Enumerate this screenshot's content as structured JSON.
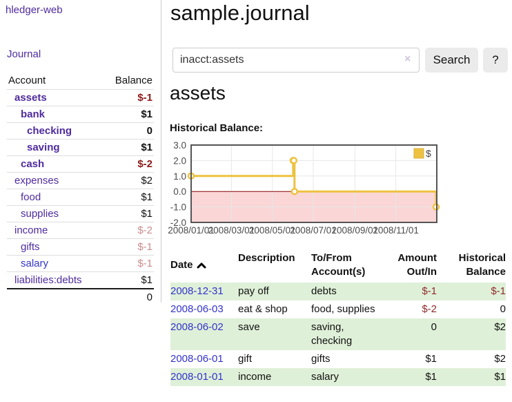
{
  "app": {
    "brand": "hledger-web"
  },
  "nav": {
    "journal": "Journal"
  },
  "sidebar": {
    "header": {
      "account": "Account",
      "balance": "Balance"
    },
    "accounts": [
      {
        "name": "assets",
        "balance": "$-1",
        "indent": 1,
        "bold": true,
        "bal_style": "negstrong"
      },
      {
        "name": "bank",
        "balance": "$1",
        "indent": 2,
        "bold": true,
        "bal_style": "normal"
      },
      {
        "name": "checking",
        "balance": "0",
        "indent": 3,
        "bold": true,
        "bal_style": "normal"
      },
      {
        "name": "saving",
        "balance": "$1",
        "indent": 3,
        "bold": true,
        "bal_style": "normal"
      },
      {
        "name": "cash",
        "balance": "$-2",
        "indent": 2,
        "bold": true,
        "bal_style": "negstrong"
      },
      {
        "name": "expenses",
        "balance": "$2",
        "indent": 1,
        "bold": false,
        "bal_style": "normal"
      },
      {
        "name": "food",
        "balance": "$1",
        "indent": 2,
        "bold": false,
        "bal_style": "normal"
      },
      {
        "name": "supplies",
        "balance": "$1",
        "indent": 2,
        "bold": false,
        "bal_style": "normal"
      },
      {
        "name": "income",
        "balance": "$-2",
        "indent": 1,
        "bold": false,
        "bal_style": "negfaded"
      },
      {
        "name": "gifts",
        "balance": "$-1",
        "indent": 2,
        "bold": false,
        "bal_style": "negfaded"
      },
      {
        "name": "salary",
        "balance": "$-1",
        "indent": 2,
        "bold": false,
        "bal_style": "negfaded",
        "link_color": "blue"
      },
      {
        "name": "liabilities:debts",
        "balance": "$1",
        "indent": 1,
        "bold": false,
        "bal_style": "normal"
      }
    ],
    "total": "0"
  },
  "main": {
    "title": "sample.journal",
    "search": {
      "value": "inacct:assets",
      "clear_icon": "×",
      "button_label": "Search",
      "help_label": "?"
    },
    "account_heading": "assets",
    "chart_heading": "Historical Balance:"
  },
  "chart_data": {
    "type": "line",
    "step": true,
    "title": "Historical Balance",
    "series": [
      {
        "name": "$",
        "color": "#EDC240",
        "points": [
          {
            "x": "2008-01-01",
            "y": 1
          },
          {
            "x": "2008-06-01",
            "y": 2
          },
          {
            "x": "2008-06-02",
            "y": 2
          },
          {
            "x": "2008-06-03",
            "y": 0
          },
          {
            "x": "2008-12-31",
            "y": -1
          }
        ]
      }
    ],
    "x_start": "2008-01-01",
    "x_span_days": 366,
    "ylim": [
      -2,
      3
    ],
    "ytick_labels": [
      "3.0",
      "2.0",
      "1.0",
      "0.0",
      "-1.0",
      "-2.0"
    ],
    "yticks": [
      3,
      2,
      1,
      0,
      -1,
      -2
    ],
    "xtick_labels": [
      "2008/01/01",
      "2008/03/01",
      "2008/05/01",
      "2008/07/01",
      "2008/09/01",
      "2008/11/01"
    ],
    "xtick_days": [
      0,
      60,
      121,
      182,
      244,
      305
    ],
    "legend": {
      "label": "$",
      "position": "top-right"
    },
    "grid": true,
    "colors": {
      "line": "#EDC240",
      "marker_fill": "#ffffff",
      "border": "#545454",
      "gridline": "#e7e7e7",
      "zero_line": "#8b0000",
      "negative_area": "#fad6d6",
      "axis_text": "#4a4a4a"
    }
  },
  "register": {
    "headers": {
      "date": "Date",
      "description": "Description",
      "tofrom": "To/From\nAccount(s)",
      "amount": "Amount\nOut/In",
      "historical": "Historical\nBalance"
    },
    "sort_icon": "chevron-up",
    "rows": [
      {
        "date": "2008-12-31",
        "description": "pay off",
        "accounts": "debts",
        "amount": "$-1",
        "amount_neg": true,
        "balance": "$-1",
        "balance_neg": true,
        "shaded": true
      },
      {
        "date": "2008-06-03",
        "description": "eat & shop",
        "accounts": "food, supplies",
        "amount": "$-2",
        "amount_neg": true,
        "balance": "0",
        "balance_neg": false,
        "shaded": false
      },
      {
        "date": "2008-06-02",
        "description": "save",
        "accounts": "saving,\nchecking",
        "amount": "0",
        "amount_neg": false,
        "balance": "$2",
        "balance_neg": false,
        "shaded": true
      },
      {
        "date": "2008-06-01",
        "description": "gift",
        "accounts": "gifts",
        "amount": "$1",
        "amount_neg": false,
        "balance": "$2",
        "balance_neg": false,
        "shaded": false
      },
      {
        "date": "2008-01-01",
        "description": "income",
        "accounts": "salary",
        "amount": "$1",
        "amount_neg": false,
        "balance": "$1",
        "balance_neg": false,
        "shaded": true
      }
    ]
  }
}
